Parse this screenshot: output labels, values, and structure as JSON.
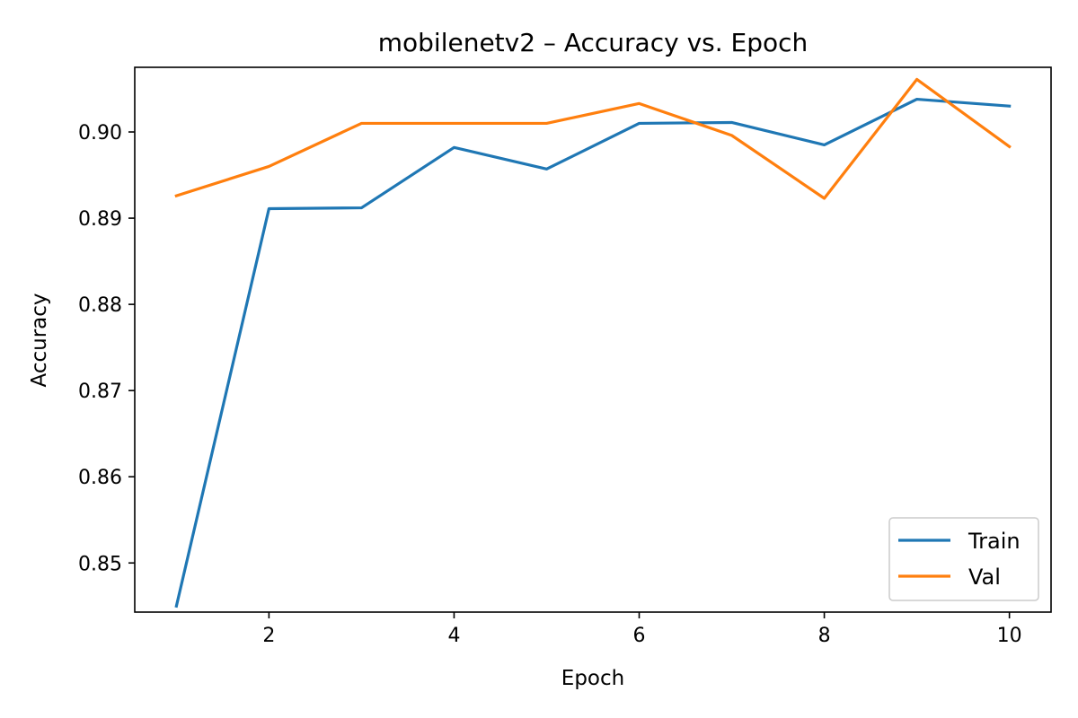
{
  "chart_data": {
    "type": "line",
    "title": "mobilenetv2 – Accuracy vs. Epoch",
    "xlabel": "Epoch",
    "ylabel": "Accuracy",
    "x": [
      1,
      2,
      3,
      4,
      5,
      6,
      7,
      8,
      9,
      10
    ],
    "xlim": [
      0.55,
      10.45
    ],
    "ylim": [
      0.8443,
      0.9075
    ],
    "xticks": [
      2,
      4,
      6,
      8,
      10
    ],
    "xtick_labels": [
      "2",
      "4",
      "6",
      "8",
      "10"
    ],
    "yticks": [
      0.85,
      0.86,
      0.87,
      0.88,
      0.89,
      0.9
    ],
    "ytick_labels": [
      "0.85",
      "0.86",
      "0.87",
      "0.88",
      "0.89",
      "0.90"
    ],
    "grid": false,
    "legend_position": "lower-right",
    "series": [
      {
        "name": "Train",
        "color": "#1f77b4",
        "values": [
          0.845,
          0.8911,
          0.8912,
          0.8982,
          0.8957,
          0.901,
          0.9011,
          0.8985,
          0.9038,
          0.903
        ]
      },
      {
        "name": "Val",
        "color": "#ff7f0e",
        "values": [
          0.8926,
          0.896,
          0.901,
          0.901,
          0.901,
          0.9033,
          0.8996,
          0.8923,
          0.9061,
          0.8983
        ]
      }
    ]
  }
}
